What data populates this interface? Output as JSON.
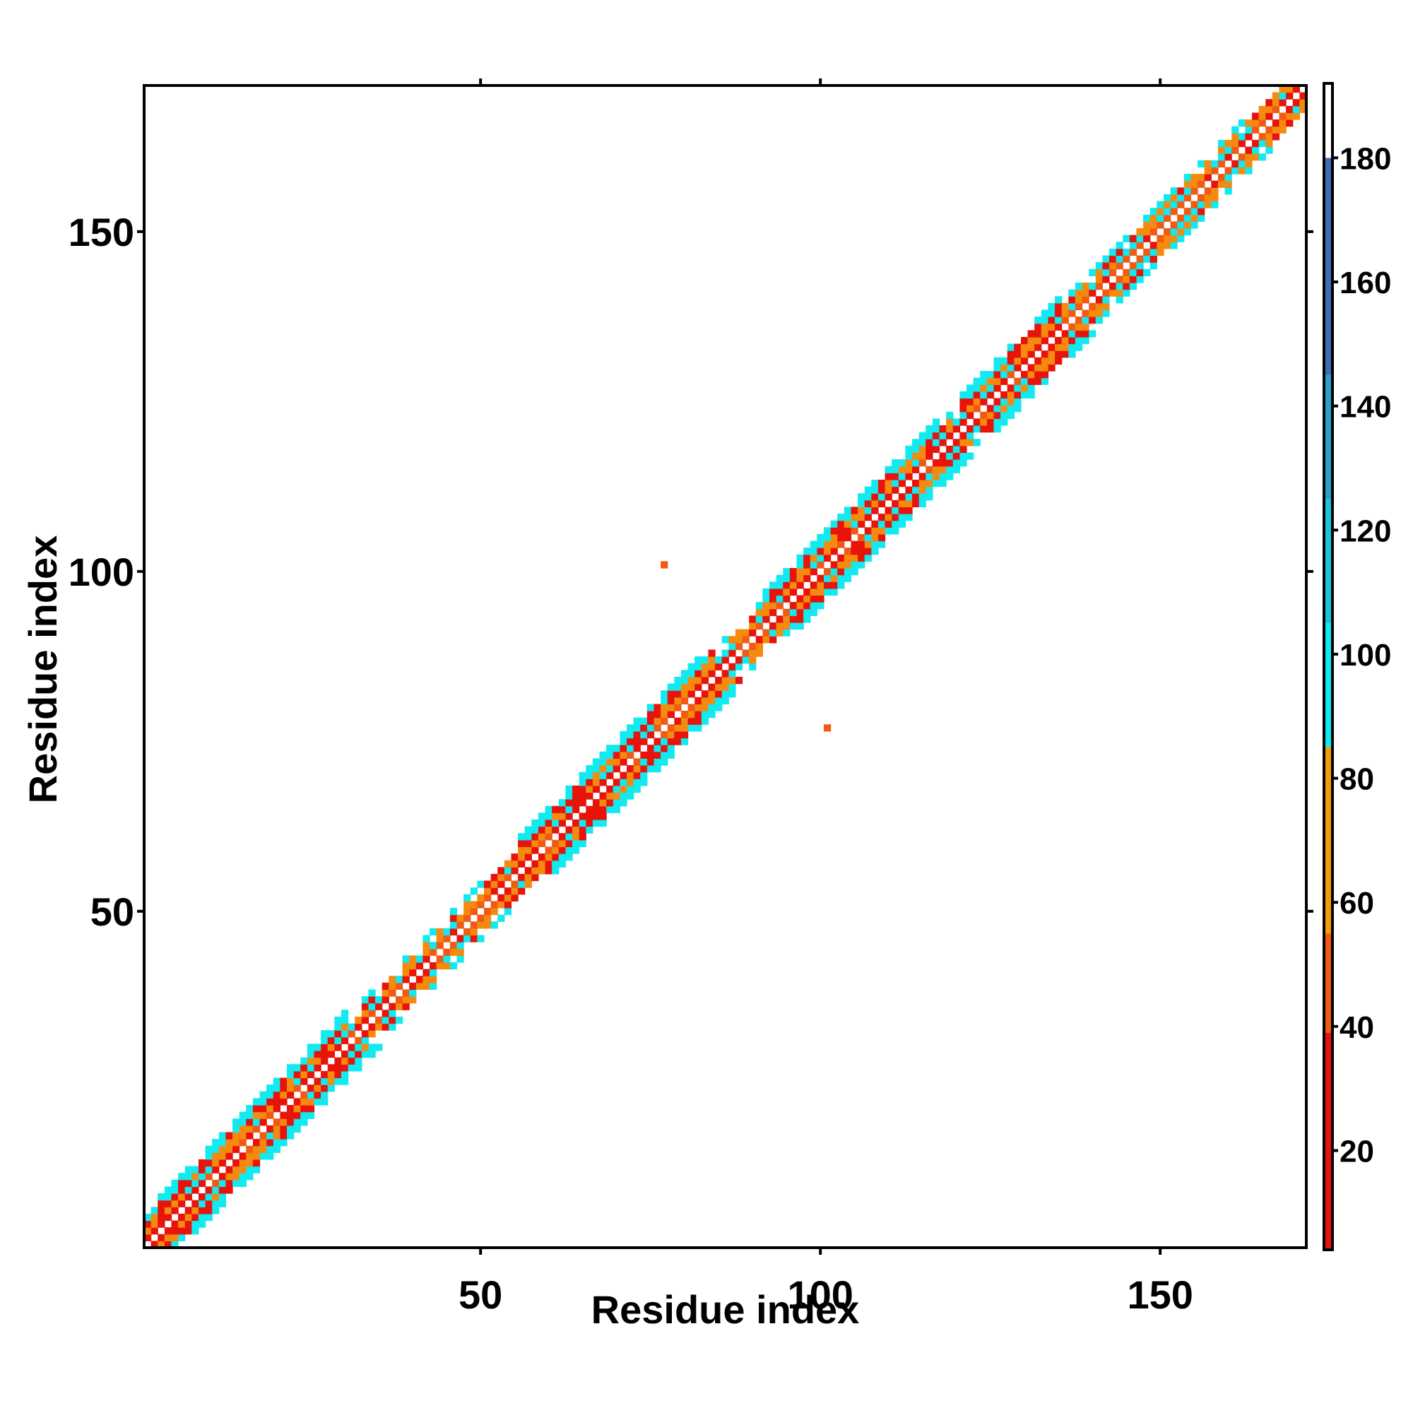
{
  "chart_data": {
    "type": "heatmap",
    "title": "",
    "xlabel": "Residue index",
    "ylabel": "Residue index",
    "xlim": [
      1,
      171
    ],
    "ylim": [
      1,
      171
    ],
    "xticks": [
      50,
      100,
      150
    ],
    "yticks": [
      50,
      100,
      150
    ],
    "x_tick_labels": [
      "50",
      "100",
      "150"
    ],
    "y_tick_labels": [
      "50",
      "100",
      "150"
    ],
    "grid": false,
    "legend": "none",
    "colorbar": {
      "placement": "right",
      "range": [
        4,
        192
      ],
      "ticks": [
        20,
        40,
        60,
        80,
        100,
        120,
        140,
        160,
        180
      ],
      "tick_labels": [
        "20",
        "40",
        "60",
        "80",
        "100",
        "120",
        "140",
        "160",
        "180"
      ],
      "color_stops": [
        {
          "from": 4,
          "to": 39,
          "color": "#e8130a"
        },
        {
          "from": 39,
          "to": 55,
          "color": "#f05a14"
        },
        {
          "from": 55,
          "to": 85,
          "color": "#f59a0c"
        },
        {
          "from": 85,
          "to": 105,
          "color": "#10eaf0"
        },
        {
          "from": 105,
          "to": 125,
          "color": "#1ac4d8"
        },
        {
          "from": 125,
          "to": 145,
          "color": "#2a9fc8"
        },
        {
          "from": 145,
          "to": 180,
          "color": "#3d6fb2"
        },
        {
          "from": 180,
          "to": 192,
          "color": "#ffffff"
        }
      ]
    },
    "cell_colors": {
      "red": "#e8130a",
      "orange": "#f58a0e",
      "orange_red": "#f05a14",
      "cyan": "#10eaf0"
    },
    "diagonal_band": {
      "residue_range": [
        1,
        171
      ],
      "band_offsets": [
        1,
        2,
        3,
        4,
        5
      ],
      "segments": [
        {
          "from": 1,
          "to": 31,
          "kind": "helix"
        },
        {
          "from": 31,
          "to": 56,
          "kind": "coil"
        },
        {
          "from": 56,
          "to": 85,
          "kind": "helix"
        },
        {
          "from": 85,
          "to": 92,
          "kind": "coil"
        },
        {
          "from": 92,
          "to": 118,
          "kind": "helix"
        },
        {
          "from": 118,
          "to": 121,
          "kind": "coil"
        },
        {
          "from": 121,
          "to": 136,
          "kind": "helix"
        },
        {
          "from": 136,
          "to": 171,
          "kind": "coil"
        }
      ]
    },
    "off_diagonal_contacts": [
      {
        "x": 77,
        "y": 101,
        "color": "#f05a14"
      },
      {
        "x": 101,
        "y": 77,
        "color": "#f05a14"
      }
    ]
  }
}
